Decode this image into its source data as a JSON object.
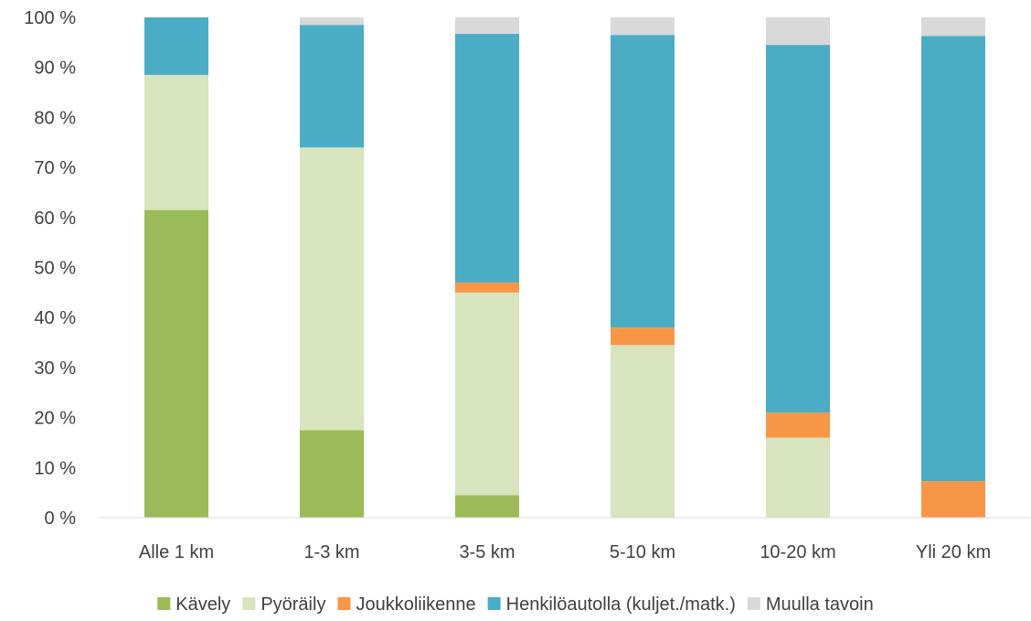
{
  "chart_data": {
    "type": "bar",
    "stacked": true,
    "percent": true,
    "categories": [
      "Alle 1 km",
      "1-3 km",
      "3-5 km",
      "5-10 km",
      "10-20 km",
      "Yli 20 km"
    ],
    "series": [
      {
        "name": "Kävely",
        "color": "#9bbb59",
        "values": [
          61.5,
          17.5,
          4.5,
          0,
          0,
          0
        ]
      },
      {
        "name": "Pyöräily",
        "color": "#d7e4bd",
        "values": [
          27,
          56.5,
          40.5,
          34.5,
          16,
          0
        ]
      },
      {
        "name": "Joukkoliikenne",
        "color": "#f79646",
        "values": [
          0,
          0,
          2,
          3.5,
          5,
          7.3
        ]
      },
      {
        "name": "Henkilöautolla (kuljet./matk.)",
        "color": "#4bacc6",
        "values": [
          11.5,
          24.5,
          49.7,
          58.5,
          73.5,
          89
        ]
      },
      {
        "name": "Muulla tavoin",
        "color": "#d9d9d9",
        "values": [
          0,
          1.5,
          3.3,
          3.5,
          5.5,
          3.7
        ]
      }
    ],
    "yticks": [
      "0 %",
      "10 %",
      "20 %",
      "30 %",
      "40 %",
      "50 %",
      "60 %",
      "70 %",
      "80 %",
      "90 %",
      "100 %"
    ],
    "ylim": [
      0,
      100
    ],
    "grid": false,
    "legend_position": "bottom",
    "title": "",
    "xlabel": "",
    "ylabel": ""
  }
}
